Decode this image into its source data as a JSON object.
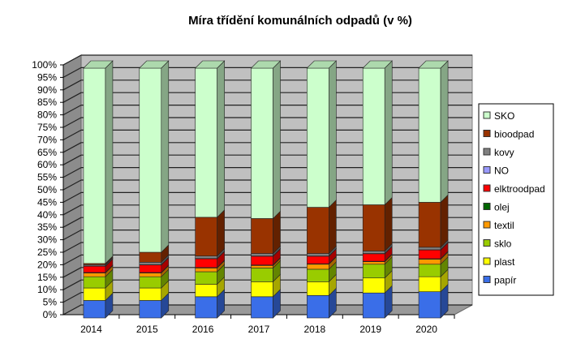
{
  "chart_data": {
    "type": "bar",
    "stacked": true,
    "title": "Míra třídění komunálních odpadů (v %)",
    "xlabel": "",
    "ylabel": "",
    "ylim": [
      0,
      100
    ],
    "yticks": [
      "0%",
      "5%",
      "10%",
      "15%",
      "20%",
      "25%",
      "30%",
      "35%",
      "40%",
      "45%",
      "50%",
      "55%",
      "60%",
      "65%",
      "70%",
      "75%",
      "80%",
      "85%",
      "90%",
      "95%",
      "100%"
    ],
    "categories": [
      "2014",
      "2015",
      "2016",
      "2017",
      "2018",
      "2019",
      "2020"
    ],
    "legend_position": "right",
    "series": [
      {
        "name": "papír",
        "color": "#3a6ee8",
        "values": [
          7,
          7,
          8.5,
          8.5,
          9,
          10,
          10.5
        ]
      },
      {
        "name": "plast",
        "color": "#ffff00",
        "values": [
          5,
          5,
          5,
          6,
          5.5,
          6,
          6
        ]
      },
      {
        "name": "sklo",
        "color": "#99cc00",
        "values": [
          4.5,
          4.5,
          5,
          5.5,
          5,
          5.5,
          5
        ]
      },
      {
        "name": "textil",
        "color": "#ff9900",
        "values": [
          1.5,
          1.5,
          1.5,
          1,
          2,
          1,
          2
        ]
      },
      {
        "name": "olej",
        "color": "#006600",
        "values": [
          0.2,
          0.2,
          0.2,
          0.2,
          0.2,
          0.2,
          0.2
        ]
      },
      {
        "name": "elktroodpad",
        "color": "#ff0000",
        "values": [
          2.5,
          3,
          3.5,
          3.5,
          3,
          3,
          3.5
        ]
      },
      {
        "name": "NO",
        "color": "#9999ff",
        "values": [
          0.1,
          0.1,
          0.1,
          0.1,
          0.1,
          0.1,
          0.1
        ]
      },
      {
        "name": "kovy",
        "color": "#808080",
        "values": [
          0.5,
          1,
          1,
          1,
          1,
          1,
          1
        ]
      },
      {
        "name": "bioodpad",
        "color": "#993300",
        "values": [
          0.5,
          4,
          15.5,
          14,
          18.5,
          18.5,
          18
        ]
      },
      {
        "name": "SKO",
        "color": "#ccffcc",
        "values": [
          78.2,
          73.7,
          59.7,
          60.2,
          55.7,
          54.7,
          53.7
        ]
      }
    ]
  }
}
